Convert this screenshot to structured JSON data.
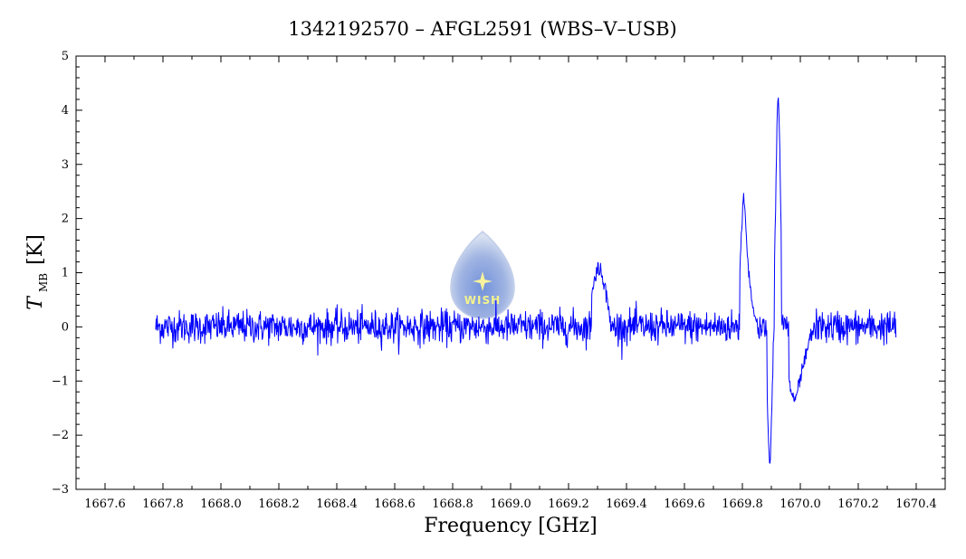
{
  "chart_data": {
    "type": "line",
    "title": "1342192570 – AFGL2591 (WBS–V–USB)",
    "xlabel": "Frequency [GHz]",
    "ylabel": {
      "main": "T",
      "subscript": "MB",
      "unit": "[K]"
    },
    "xlim": [
      1667.5,
      1670.5
    ],
    "ylim": [
      -3,
      5
    ],
    "x_ticks": [
      1667.6,
      1667.8,
      1668.0,
      1668.2,
      1668.4,
      1668.6,
      1668.8,
      1669.0,
      1669.2,
      1669.4,
      1669.6,
      1669.8,
      1670.0,
      1670.2,
      1670.4
    ],
    "x_tick_labels": [
      "1667.6",
      "1667.8",
      "1668.0",
      "1668.2",
      "1668.4",
      "1668.6",
      "1668.8",
      "1669.0",
      "1669.2",
      "1669.4",
      "1669.6",
      "1669.8",
      "1670.0",
      "1670.2",
      "1670.4"
    ],
    "y_ticks": [
      -3,
      -2,
      -1,
      0,
      1,
      2,
      3,
      4,
      5
    ],
    "y_tick_labels": [
      "−3",
      "−2",
      "−1",
      "0",
      "1",
      "2",
      "3",
      "4",
      "5"
    ],
    "grid": false,
    "series": [
      {
        "color": "#0000ff",
        "x_range": [
          1667.775,
          1670.33
        ],
        "baseline": 0.0,
        "noise_rms": 0.15,
        "features": [
          {
            "x": [
              1669.28,
              1669.3,
              1669.32,
              1669.34
            ],
            "y": [
              0.7,
              1.1,
              0.9,
              0.3
            ]
          },
          {
            "x": [
              1669.79,
              1669.805,
              1669.815,
              1669.83,
              1669.86
            ],
            "y": [
              1.0,
              2.6,
              1.5,
              0.5,
              -0.2
            ]
          },
          {
            "x": [
              1669.885,
              1669.895,
              1669.905
            ],
            "y": [
              -1.2,
              -2.7,
              -0.8
            ]
          },
          {
            "x": [
              1669.91,
              1669.92,
              1669.925,
              1669.935
            ],
            "y": [
              1.0,
              3.9,
              4.3,
              1.5
            ]
          },
          {
            "x": [
              1669.96,
              1669.98,
              1670.0,
              1670.02,
              1670.05
            ],
            "y": [
              -1.0,
              -1.4,
              -1.0,
              -0.5,
              0.1
            ]
          }
        ]
      }
    ],
    "logo": {
      "text": "WISH",
      "icon": "star-icon"
    }
  }
}
